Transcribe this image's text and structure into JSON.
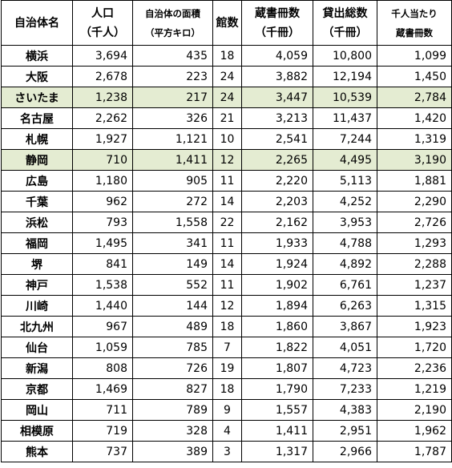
{
  "table": {
    "header": [
      [
        "自治体名"
      ],
      [
        "人口",
        "（千人）"
      ],
      [
        "自治体の面積",
        "（平方キロ）"
      ],
      [
        "館数"
      ],
      [
        "蔵書冊数",
        "（千冊）"
      ],
      [
        "貸出総数",
        "（千冊）"
      ],
      [
        "千人当たり",
        "蔵書冊数"
      ]
    ],
    "rows": [
      [
        "横浜",
        "3,694",
        "435",
        "18",
        "4,059",
        "10,800",
        "1,099"
      ],
      [
        "大阪",
        "2,678",
        "223",
        "24",
        "3,882",
        "12,194",
        "1,450"
      ],
      [
        "さいたま",
        "1,238",
        "217",
        "24",
        "3,447",
        "10,539",
        "2,784"
      ],
      [
        "名古屋",
        "2,262",
        "326",
        "21",
        "3,213",
        "11,437",
        "1,420"
      ],
      [
        "札幌",
        "1,927",
        "1,121",
        "10",
        "2,541",
        "7,244",
        "1,319"
      ],
      [
        "静岡",
        "710",
        "1,411",
        "12",
        "2,265",
        "4,495",
        "3,190"
      ],
      [
        "広島",
        "1,180",
        "905",
        "11",
        "2,220",
        "5,113",
        "1,881"
      ],
      [
        "千葉",
        "962",
        "272",
        "14",
        "2,203",
        "4,252",
        "2,290"
      ],
      [
        "浜松",
        "793",
        "1,558",
        "22",
        "2,162",
        "3,953",
        "2,726"
      ],
      [
        "福岡",
        "1,495",
        "341",
        "11",
        "1,933",
        "4,788",
        "1,293"
      ],
      [
        "堺",
        "841",
        "149",
        "14",
        "1,924",
        "4,892",
        "2,288"
      ],
      [
        "神戸",
        "1,538",
        "552",
        "11",
        "1,902",
        "6,761",
        "1,237"
      ],
      [
        "川崎",
        "1,440",
        "144",
        "12",
        "1,894",
        "6,263",
        "1,315"
      ],
      [
        "北九州",
        "967",
        "489",
        "18",
        "1,860",
        "3,867",
        "1,923"
      ],
      [
        "仙台",
        "1,059",
        "785",
        "7",
        "1,822",
        "4,051",
        "1,720"
      ],
      [
        "新潟",
        "808",
        "726",
        "19",
        "1,807",
        "4,723",
        "2,236"
      ],
      [
        "京都",
        "1,469",
        "827",
        "18",
        "1,790",
        "7,233",
        "1,219"
      ],
      [
        "岡山",
        "711",
        "789",
        "9",
        "1,557",
        "4,383",
        "2,190"
      ],
      [
        "相模原",
        "719",
        "328",
        "4",
        "1,411",
        "2,951",
        "1,962"
      ],
      [
        "熊本",
        "737",
        "389",
        "3",
        "1,317",
        "2,966",
        "1,787"
      ]
    ]
  }
}
